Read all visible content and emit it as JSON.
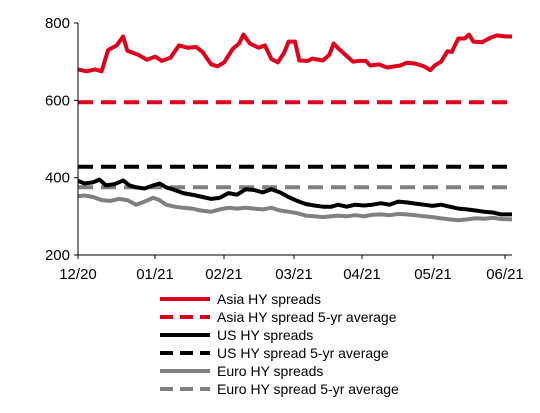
{
  "chart_data": {
    "type": "line",
    "title": "",
    "xlabel": "",
    "ylabel": "",
    "ylim": [
      200,
      800
    ],
    "yticks": [
      200,
      400,
      600,
      800
    ],
    "xticks": [
      "12/20",
      "01/21",
      "02/21",
      "03/21",
      "04/21",
      "05/21",
      "06/21"
    ],
    "x_range": [
      "2020-12-01",
      "2021-06-21"
    ],
    "grid": false,
    "legend_position": "bottom",
    "series": [
      {
        "name": "Asia HY spreads",
        "color": "#e0001b",
        "style": "solid",
        "points": [
          [
            "2020-12-01",
            680
          ],
          [
            "2020-12-05",
            675
          ],
          [
            "2020-12-09",
            680
          ],
          [
            "2020-12-12",
            675
          ],
          [
            "2020-12-15",
            730
          ],
          [
            "2020-12-19",
            742
          ],
          [
            "2020-12-22",
            765
          ],
          [
            "2020-12-24",
            728
          ],
          [
            "2020-12-29",
            718
          ],
          [
            "2021-01-02",
            705
          ],
          [
            "2021-01-06",
            713
          ],
          [
            "2021-01-09",
            702
          ],
          [
            "2021-01-13",
            710
          ],
          [
            "2021-01-17",
            742
          ],
          [
            "2021-01-21",
            736
          ],
          [
            "2021-01-25",
            738
          ],
          [
            "2021-01-28",
            725
          ],
          [
            "2021-02-01",
            693
          ],
          [
            "2021-02-04",
            688
          ],
          [
            "2021-02-07",
            698
          ],
          [
            "2021-02-11",
            733
          ],
          [
            "2021-02-14",
            747
          ],
          [
            "2021-02-16",
            770
          ],
          [
            "2021-02-19",
            747
          ],
          [
            "2021-02-23",
            736
          ],
          [
            "2021-02-26",
            742
          ],
          [
            "2021-03-01",
            707
          ],
          [
            "2021-03-04",
            698
          ],
          [
            "2021-03-07",
            724
          ],
          [
            "2021-03-09",
            752
          ],
          [
            "2021-03-12",
            752
          ],
          [
            "2021-03-14",
            703
          ],
          [
            "2021-03-18",
            702
          ],
          [
            "2021-03-20",
            708
          ],
          [
            "2021-03-25",
            703
          ],
          [
            "2021-03-28",
            718
          ],
          [
            "2021-03-30",
            747
          ],
          [
            "2021-04-01",
            735
          ],
          [
            "2021-04-05",
            715
          ],
          [
            "2021-04-08",
            700
          ],
          [
            "2021-04-11",
            702
          ],
          [
            "2021-04-14",
            702
          ],
          [
            "2021-04-16",
            690
          ],
          [
            "2021-04-20",
            693
          ],
          [
            "2021-04-24",
            685
          ],
          [
            "2021-04-30",
            690
          ],
          [
            "2021-05-03",
            697
          ],
          [
            "2021-05-07",
            695
          ],
          [
            "2021-05-11",
            688
          ],
          [
            "2021-05-14",
            678
          ],
          [
            "2021-05-16",
            690
          ],
          [
            "2021-05-19",
            700
          ],
          [
            "2021-05-22",
            727
          ],
          [
            "2021-05-24",
            725
          ],
          [
            "2021-05-27",
            760
          ],
          [
            "2021-05-30",
            760
          ],
          [
            "2021-06-01",
            770
          ],
          [
            "2021-06-03",
            752
          ],
          [
            "2021-06-07",
            750
          ],
          [
            "2021-06-11",
            762
          ],
          [
            "2021-06-14",
            768
          ],
          [
            "2021-06-18",
            765
          ],
          [
            "2021-06-21",
            765
          ]
        ]
      },
      {
        "name": "Asia HY spread 5-yr average",
        "color": "#e0001b",
        "style": "dashed",
        "points": [
          [
            "2020-12-01",
            595
          ],
          [
            "2021-06-21",
            595
          ]
        ]
      },
      {
        "name": "US HY spreads",
        "color": "#000000",
        "style": "solid",
        "points": [
          [
            "2020-12-01",
            392
          ],
          [
            "2020-12-04",
            385
          ],
          [
            "2020-12-08",
            388
          ],
          [
            "2020-12-11",
            395
          ],
          [
            "2020-12-14",
            380
          ],
          [
            "2020-12-18",
            383
          ],
          [
            "2020-12-22",
            393
          ],
          [
            "2020-12-25",
            380
          ],
          [
            "2020-12-28",
            375
          ],
          [
            "2021-01-01",
            372
          ],
          [
            "2021-01-05",
            380
          ],
          [
            "2021-01-08",
            385
          ],
          [
            "2021-01-11",
            375
          ],
          [
            "2021-01-15",
            368
          ],
          [
            "2021-01-19",
            360
          ],
          [
            "2021-01-24",
            355
          ],
          [
            "2021-01-28",
            350
          ],
          [
            "2021-02-01",
            345
          ],
          [
            "2021-02-05",
            348
          ],
          [
            "2021-02-09",
            360
          ],
          [
            "2021-02-13",
            356
          ],
          [
            "2021-02-17",
            370
          ],
          [
            "2021-02-21",
            368
          ],
          [
            "2021-02-25",
            362
          ],
          [
            "2021-03-01",
            370
          ],
          [
            "2021-03-05",
            362
          ],
          [
            "2021-03-09",
            350
          ],
          [
            "2021-03-13",
            340
          ],
          [
            "2021-03-17",
            332
          ],
          [
            "2021-03-21",
            328
          ],
          [
            "2021-03-25",
            325
          ],
          [
            "2021-03-29",
            325
          ],
          [
            "2021-04-01",
            330
          ],
          [
            "2021-04-05",
            325
          ],
          [
            "2021-04-09",
            330
          ],
          [
            "2021-04-13",
            328
          ],
          [
            "2021-04-17",
            330
          ],
          [
            "2021-04-21",
            334
          ],
          [
            "2021-04-25",
            330
          ],
          [
            "2021-04-29",
            338
          ],
          [
            "2021-05-03",
            336
          ],
          [
            "2021-05-07",
            333
          ],
          [
            "2021-05-11",
            330
          ],
          [
            "2021-05-15",
            327
          ],
          [
            "2021-05-19",
            330
          ],
          [
            "2021-05-23",
            325
          ],
          [
            "2021-05-27",
            320
          ],
          [
            "2021-05-31",
            318
          ],
          [
            "2021-06-04",
            315
          ],
          [
            "2021-06-08",
            312
          ],
          [
            "2021-06-12",
            310
          ],
          [
            "2021-06-16",
            305
          ],
          [
            "2021-06-21",
            305
          ]
        ]
      },
      {
        "name": "US HY spread 5-yr average",
        "color": "#000000",
        "style": "dashed",
        "points": [
          [
            "2020-12-01",
            428
          ],
          [
            "2021-06-21",
            428
          ]
        ]
      },
      {
        "name": "Euro HY spreads",
        "color": "#808080",
        "style": "solid",
        "points": [
          [
            "2020-12-01",
            352
          ],
          [
            "2020-12-04",
            354
          ],
          [
            "2020-12-08",
            350
          ],
          [
            "2020-12-12",
            342
          ],
          [
            "2020-12-16",
            340
          ],
          [
            "2020-12-20",
            345
          ],
          [
            "2020-12-24",
            342
          ],
          [
            "2020-12-28",
            330
          ],
          [
            "2021-01-01",
            338
          ],
          [
            "2021-01-05",
            348
          ],
          [
            "2021-01-08",
            342
          ],
          [
            "2021-01-11",
            330
          ],
          [
            "2021-01-15",
            325
          ],
          [
            "2021-01-19",
            322
          ],
          [
            "2021-01-23",
            320
          ],
          [
            "2021-01-27",
            315
          ],
          [
            "2021-02-01",
            312
          ],
          [
            "2021-02-05",
            318
          ],
          [
            "2021-02-09",
            322
          ],
          [
            "2021-02-13",
            320
          ],
          [
            "2021-02-17",
            322
          ],
          [
            "2021-02-21",
            320
          ],
          [
            "2021-02-25",
            318
          ],
          [
            "2021-03-01",
            322
          ],
          [
            "2021-03-05",
            315
          ],
          [
            "2021-03-09",
            312
          ],
          [
            "2021-03-13",
            308
          ],
          [
            "2021-03-17",
            302
          ],
          [
            "2021-03-21",
            300
          ],
          [
            "2021-03-25",
            298
          ],
          [
            "2021-03-29",
            300
          ],
          [
            "2021-04-01",
            302
          ],
          [
            "2021-04-05",
            300
          ],
          [
            "2021-04-09",
            303
          ],
          [
            "2021-04-13",
            300
          ],
          [
            "2021-04-17",
            304
          ],
          [
            "2021-04-21",
            305
          ],
          [
            "2021-04-25",
            303
          ],
          [
            "2021-04-29",
            306
          ],
          [
            "2021-05-03",
            305
          ],
          [
            "2021-05-07",
            303
          ],
          [
            "2021-05-11",
            300
          ],
          [
            "2021-05-15",
            298
          ],
          [
            "2021-05-19",
            295
          ],
          [
            "2021-05-23",
            292
          ],
          [
            "2021-05-27",
            290
          ],
          [
            "2021-05-31",
            292
          ],
          [
            "2021-06-04",
            295
          ],
          [
            "2021-06-08",
            294
          ],
          [
            "2021-06-12",
            296
          ],
          [
            "2021-06-16",
            293
          ],
          [
            "2021-06-21",
            292
          ]
        ]
      },
      {
        "name": "Euro HY spread 5-yr average",
        "color": "#808080",
        "style": "dashed",
        "points": [
          [
            "2020-12-01",
            375
          ],
          [
            "2021-06-21",
            375
          ]
        ]
      }
    ]
  }
}
